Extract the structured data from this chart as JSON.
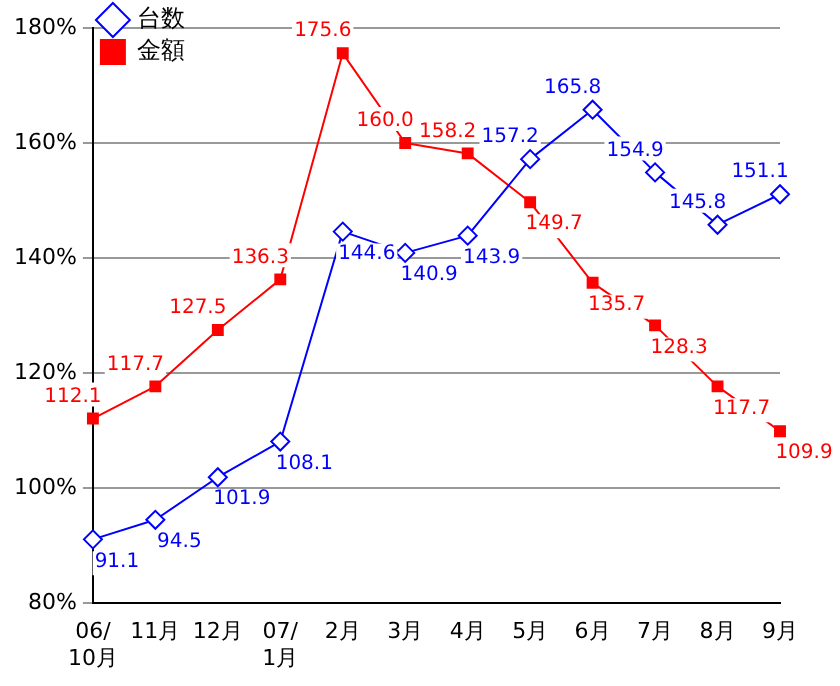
{
  "chart_data": {
    "type": "line",
    "categories": [
      "06/\n10月",
      "11月",
      "12月",
      "07/\n1月",
      "2月",
      "3月",
      "4月",
      "5月",
      "6月",
      "7月",
      "8月",
      "9月"
    ],
    "series": [
      {
        "name": "台数",
        "color": "#0000ff",
        "marker": "diamond",
        "values": [
          91.1,
          94.5,
          101.9,
          108.1,
          144.6,
          140.9,
          143.9,
          157.2,
          165.8,
          154.9,
          145.8,
          151.1
        ],
        "value_labels": [
          "91.1",
          "94.5",
          "101.9",
          "108.1",
          "144.6",
          "140.9",
          "143.9",
          "157.2",
          "165.8",
          "154.9",
          "145.8",
          "151.1"
        ]
      },
      {
        "name": "金額",
        "color": "#ff0000",
        "marker": "square",
        "values": [
          112.1,
          117.7,
          127.5,
          136.3,
          175.6,
          160.0,
          158.2,
          149.7,
          135.7,
          128.3,
          117.7,
          109.9
        ],
        "value_labels": [
          "112.1",
          "117.7",
          "127.5",
          "136.3",
          "175.6",
          "160.0",
          "158.2",
          "149.7",
          "135.7",
          "128.3",
          "117.7",
          "109.9"
        ]
      }
    ],
    "ylim": [
      80,
      180
    ],
    "yticks": [
      {
        "value": 80,
        "label": "80%"
      },
      {
        "value": 100,
        "label": "100%"
      },
      {
        "value": 120,
        "label": "120%"
      },
      {
        "value": 140,
        "label": "140%"
      },
      {
        "value": 160,
        "label": "160%"
      },
      {
        "value": 180,
        "label": "180%"
      }
    ],
    "grid": "y",
    "legend": "top left",
    "line_style": "solid"
  }
}
